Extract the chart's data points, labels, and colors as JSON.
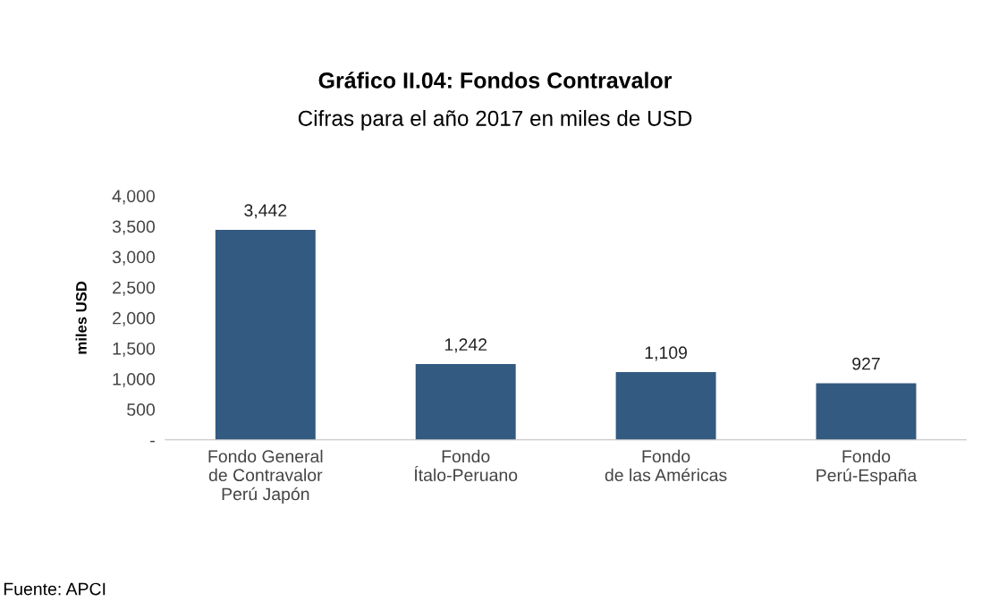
{
  "chart_data": {
    "type": "bar",
    "title": "Gráfico II.04: Fondos Contravalor",
    "subtitle": "Cifras para el año 2017 en miles de USD",
    "ylabel": "miles USD",
    "categories": [
      "Fondo General\nde Contravalor\nPerú Japón",
      "Fondo\nÍtalo-Peruano",
      "Fondo\nde las Américas",
      "Fondo\nPerú-España"
    ],
    "values": [
      3442,
      1242,
      1109,
      927
    ],
    "color": "#335a80",
    "value_labels": [
      "3,442",
      "1,242",
      "1,109",
      "927"
    ],
    "ylim": [
      0,
      4000
    ],
    "yticks": [
      {
        "value": 0,
        "label": "-"
      },
      {
        "value": 500,
        "label": "500"
      },
      {
        "value": 1000,
        "label": "1,000"
      },
      {
        "value": 1500,
        "label": "1,500"
      },
      {
        "value": 2000,
        "label": "2,000"
      },
      {
        "value": 2500,
        "label": "2,500"
      },
      {
        "value": 3000,
        "label": "3,000"
      },
      {
        "value": 3500,
        "label": "3,500"
      },
      {
        "value": 4000,
        "label": "4,000"
      }
    ],
    "grid": false,
    "annotations": [
      "Fuente: APCI"
    ]
  }
}
